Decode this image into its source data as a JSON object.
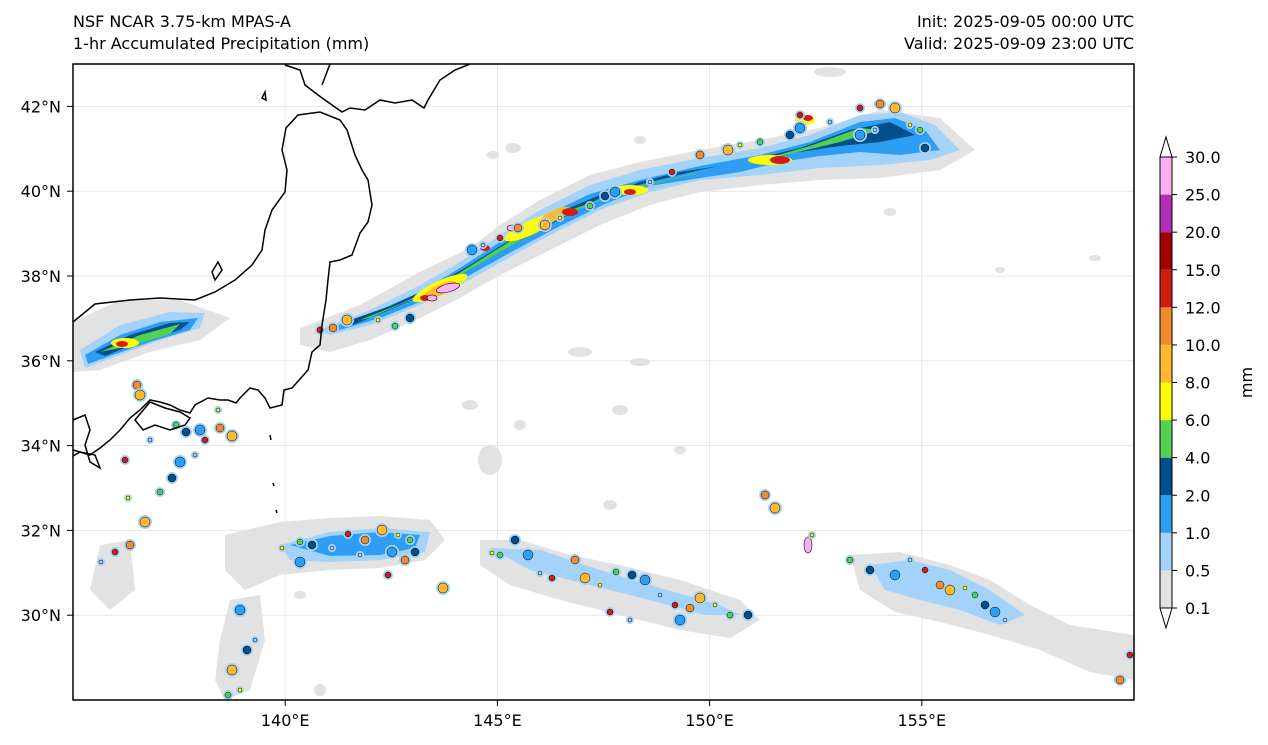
{
  "header": {
    "model": "NSF NCAR 3.75-km MPAS-A",
    "field": "1-hr Accumulated Precipitation (mm)",
    "init": "Init: 2025-09-05 00:00 UTC",
    "valid": "Valid: 2025-09-09 23:00 UTC"
  },
  "map": {
    "lon_range": [
      135,
      160
    ],
    "lat_range": [
      28,
      43
    ],
    "lon_ticks": [
      140,
      145,
      150,
      155
    ],
    "lon_tick_labels": [
      "140°E",
      "145°E",
      "150°E",
      "155°E"
    ],
    "lat_ticks": [
      30,
      32,
      34,
      36,
      38,
      40,
      42
    ],
    "lat_tick_labels": [
      "30°N",
      "32°N",
      "34°N",
      "36°N",
      "38°N",
      "40°N",
      "42°N"
    ],
    "gridlines": true,
    "coastline_color": "#000000",
    "background_color": "#ffffff"
  },
  "colorbar": {
    "unit_label": "mm",
    "levels": [
      "0.1",
      "0.5",
      "1.0",
      "2.0",
      "4.0",
      "6.0",
      "8.0",
      "10.0",
      "12.0",
      "15.0",
      "20.0",
      "25.0",
      "30.0"
    ],
    "colors": [
      "#e2e2e2",
      "#a3d3fb",
      "#2e9ef4",
      "#004f8a",
      "#52d051",
      "#ffff00",
      "#ffb830",
      "#f18c2e",
      "#d01c11",
      "#a00000",
      "#b12fb6",
      "#fcb0f3"
    ],
    "extend": "both"
  },
  "precip_features": [
    {
      "region": "frontal band",
      "lon": [
        135.3,
        137.9
      ],
      "lat": [
        35.9,
        37.2
      ],
      "max_category": "15.0"
    },
    {
      "region": "frontal band",
      "lon": [
        141.0,
        147.0
      ],
      "lat": [
        36.6,
        39.7
      ],
      "max_category": "25.0"
    },
    {
      "region": "frontal band",
      "lon": [
        147.0,
        154.5
      ],
      "lat": [
        39.0,
        42.2
      ],
      "max_category": "20.0"
    },
    {
      "region": "southern Japan coast",
      "lon": [
        135.5,
        139.0
      ],
      "lat": [
        30.5,
        35.0
      ],
      "max_category": "15.0"
    },
    {
      "region": "Izu islands convection",
      "lon": [
        138.5,
        144.0
      ],
      "lat": [
        28.0,
        32.3
      ],
      "max_category": "20.0"
    },
    {
      "region": "Pacific cells",
      "lon": [
        144.5,
        151.0
      ],
      "lat": [
        29.4,
        32.0
      ],
      "max_category": "15.0"
    },
    {
      "region": "Pacific cells",
      "lon": [
        151.5,
        160.0
      ],
      "lat": [
        29.0,
        32.9
      ],
      "max_category": "25.0"
    }
  ]
}
